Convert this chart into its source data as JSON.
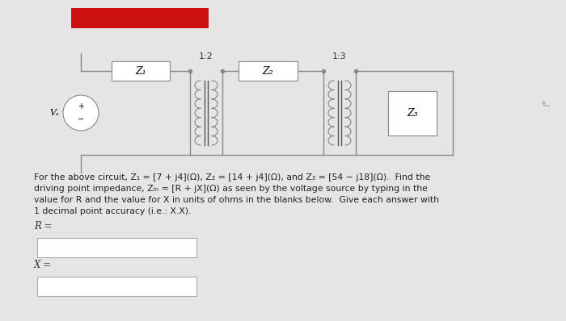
{
  "bg_color": "#e5e5e5",
  "circuit_label_12": "1:2",
  "circuit_label_13": "1:3",
  "z1_label": "Z₁",
  "z2_label": "Z₂",
  "z3_label": "Z₃",
  "vs_label": "Vₛ",
  "desc1": "For the above circuit, Z₁ = [7 + j4](Ω), Z₂ = [14 + j4](Ω), and Z₃ = [54 − j18](Ω).  Find the",
  "desc2": "driving point impedance, Zᵢₙ = [R + jX](Ω) as seen by the voltage source by typing in the",
  "desc3": "value for R and the value for X in units of ohms in the blanks below.  Give each answer with",
  "desc4": "1 decimal point accuracy (i.e.: X.X).",
  "R_label": "R =",
  "X_label": "X =",
  "font_size_desc": 7.8,
  "font_size_labels": 8.5,
  "wire_color": "#888888",
  "box_color": "#888888",
  "coil_color": "#777777"
}
